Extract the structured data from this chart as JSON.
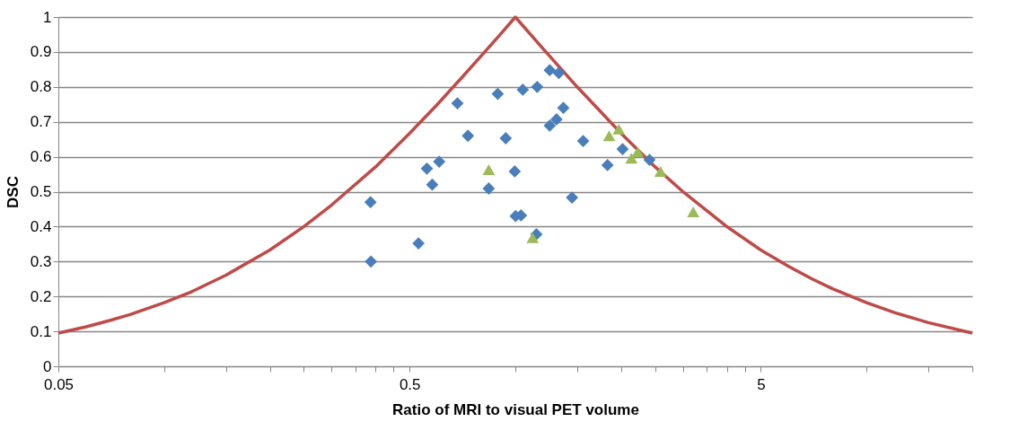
{
  "chart_data": {
    "type": "scatter",
    "xlabel": "Ratio of MRI to visual PET volume",
    "ylabel": "DSC",
    "log": "x",
    "grid": "y",
    "xlim": [
      0.05,
      20
    ],
    "ylim": [
      0,
      1
    ],
    "xticks": [
      0.05,
      {
        "value": 0.1,
        "label": null
      },
      {
        "value": 0.15,
        "label": null
      },
      {
        "value": 0.2,
        "label": null
      },
      {
        "value": 0.25,
        "label": null
      },
      {
        "value": 0.3,
        "label": null
      },
      {
        "value": 0.35,
        "label": null
      },
      {
        "value": 0.4,
        "label": null
      },
      {
        "value": 0.45,
        "label": null
      },
      0.5,
      {
        "value": 1,
        "label": null
      },
      {
        "value": 1.5,
        "label": null
      },
      {
        "value": 2,
        "label": null
      },
      {
        "value": 2.5,
        "label": null
      },
      {
        "value": 3,
        "label": null
      },
      {
        "value": 3.5,
        "label": null
      },
      {
        "value": 4,
        "label": null
      },
      {
        "value": 4.5,
        "label": null
      },
      5,
      {
        "value": 10,
        "label": null
      },
      {
        "value": 15,
        "label": null
      },
      {
        "value": 20,
        "label": null
      }
    ],
    "yticks": [
      0,
      0.1,
      0.2,
      0.3,
      0.4,
      0.5,
      0.6,
      0.7,
      0.8,
      0.9,
      1
    ],
    "series": [
      {
        "type": "line",
        "color": "#be4b48",
        "marker": "none",
        "x": [
          0.05,
          0.06,
          0.07,
          0.08,
          0.1,
          0.12,
          0.15,
          0.2,
          0.25,
          0.3,
          0.4,
          0.5,
          0.6,
          0.7,
          0.8,
          0.9,
          1,
          1.2,
          1.5,
          2,
          2.5,
          3,
          4,
          5,
          6,
          7,
          8,
          10,
          12,
          15,
          20
        ],
        "values": [
          0.095,
          0.113,
          0.131,
          0.148,
          0.182,
          0.214,
          0.261,
          0.333,
          0.4,
          0.462,
          0.571,
          0.667,
          0.75,
          0.824,
          0.889,
          0.947,
          1,
          0.909,
          0.8,
          0.667,
          0.571,
          0.5,
          0.4,
          0.333,
          0.286,
          0.25,
          0.222,
          0.182,
          0.154,
          0.125,
          0.095
        ]
      },
      {
        "color": "#4a7ebb",
        "marker": "diamond",
        "x": [
          0.388,
          0.387,
          0.53,
          0.56,
          0.607,
          0.58,
          0.684,
          0.733,
          0.891,
          0.939,
          0.84,
          0.996,
          1.002,
          1.038,
          1.148,
          1.05,
          1.154,
          1.253,
          1.33,
          1.37,
          1.31,
          1.253,
          1.56,
          1.45,
          2.02,
          1.83,
          2.41
        ],
        "values": [
          0.3,
          0.47,
          0.352,
          0.566,
          0.586,
          0.52,
          0.753,
          0.66,
          0.78,
          0.653,
          0.509,
          0.558,
          0.43,
          0.432,
          0.378,
          0.792,
          0.8,
          0.848,
          0.84,
          0.74,
          0.707,
          0.689,
          0.645,
          0.483,
          0.622,
          0.576,
          0.591
        ]
      },
      {
        "color": "#9bbb59",
        "marker": "triangle",
        "x": [
          0.84,
          1.12,
          1.85,
          1.97,
          2.14,
          2.23,
          2.59,
          3.21
        ],
        "values": [
          0.563,
          0.368,
          0.66,
          0.679,
          0.596,
          0.614,
          0.558,
          0.442
        ]
      }
    ]
  }
}
